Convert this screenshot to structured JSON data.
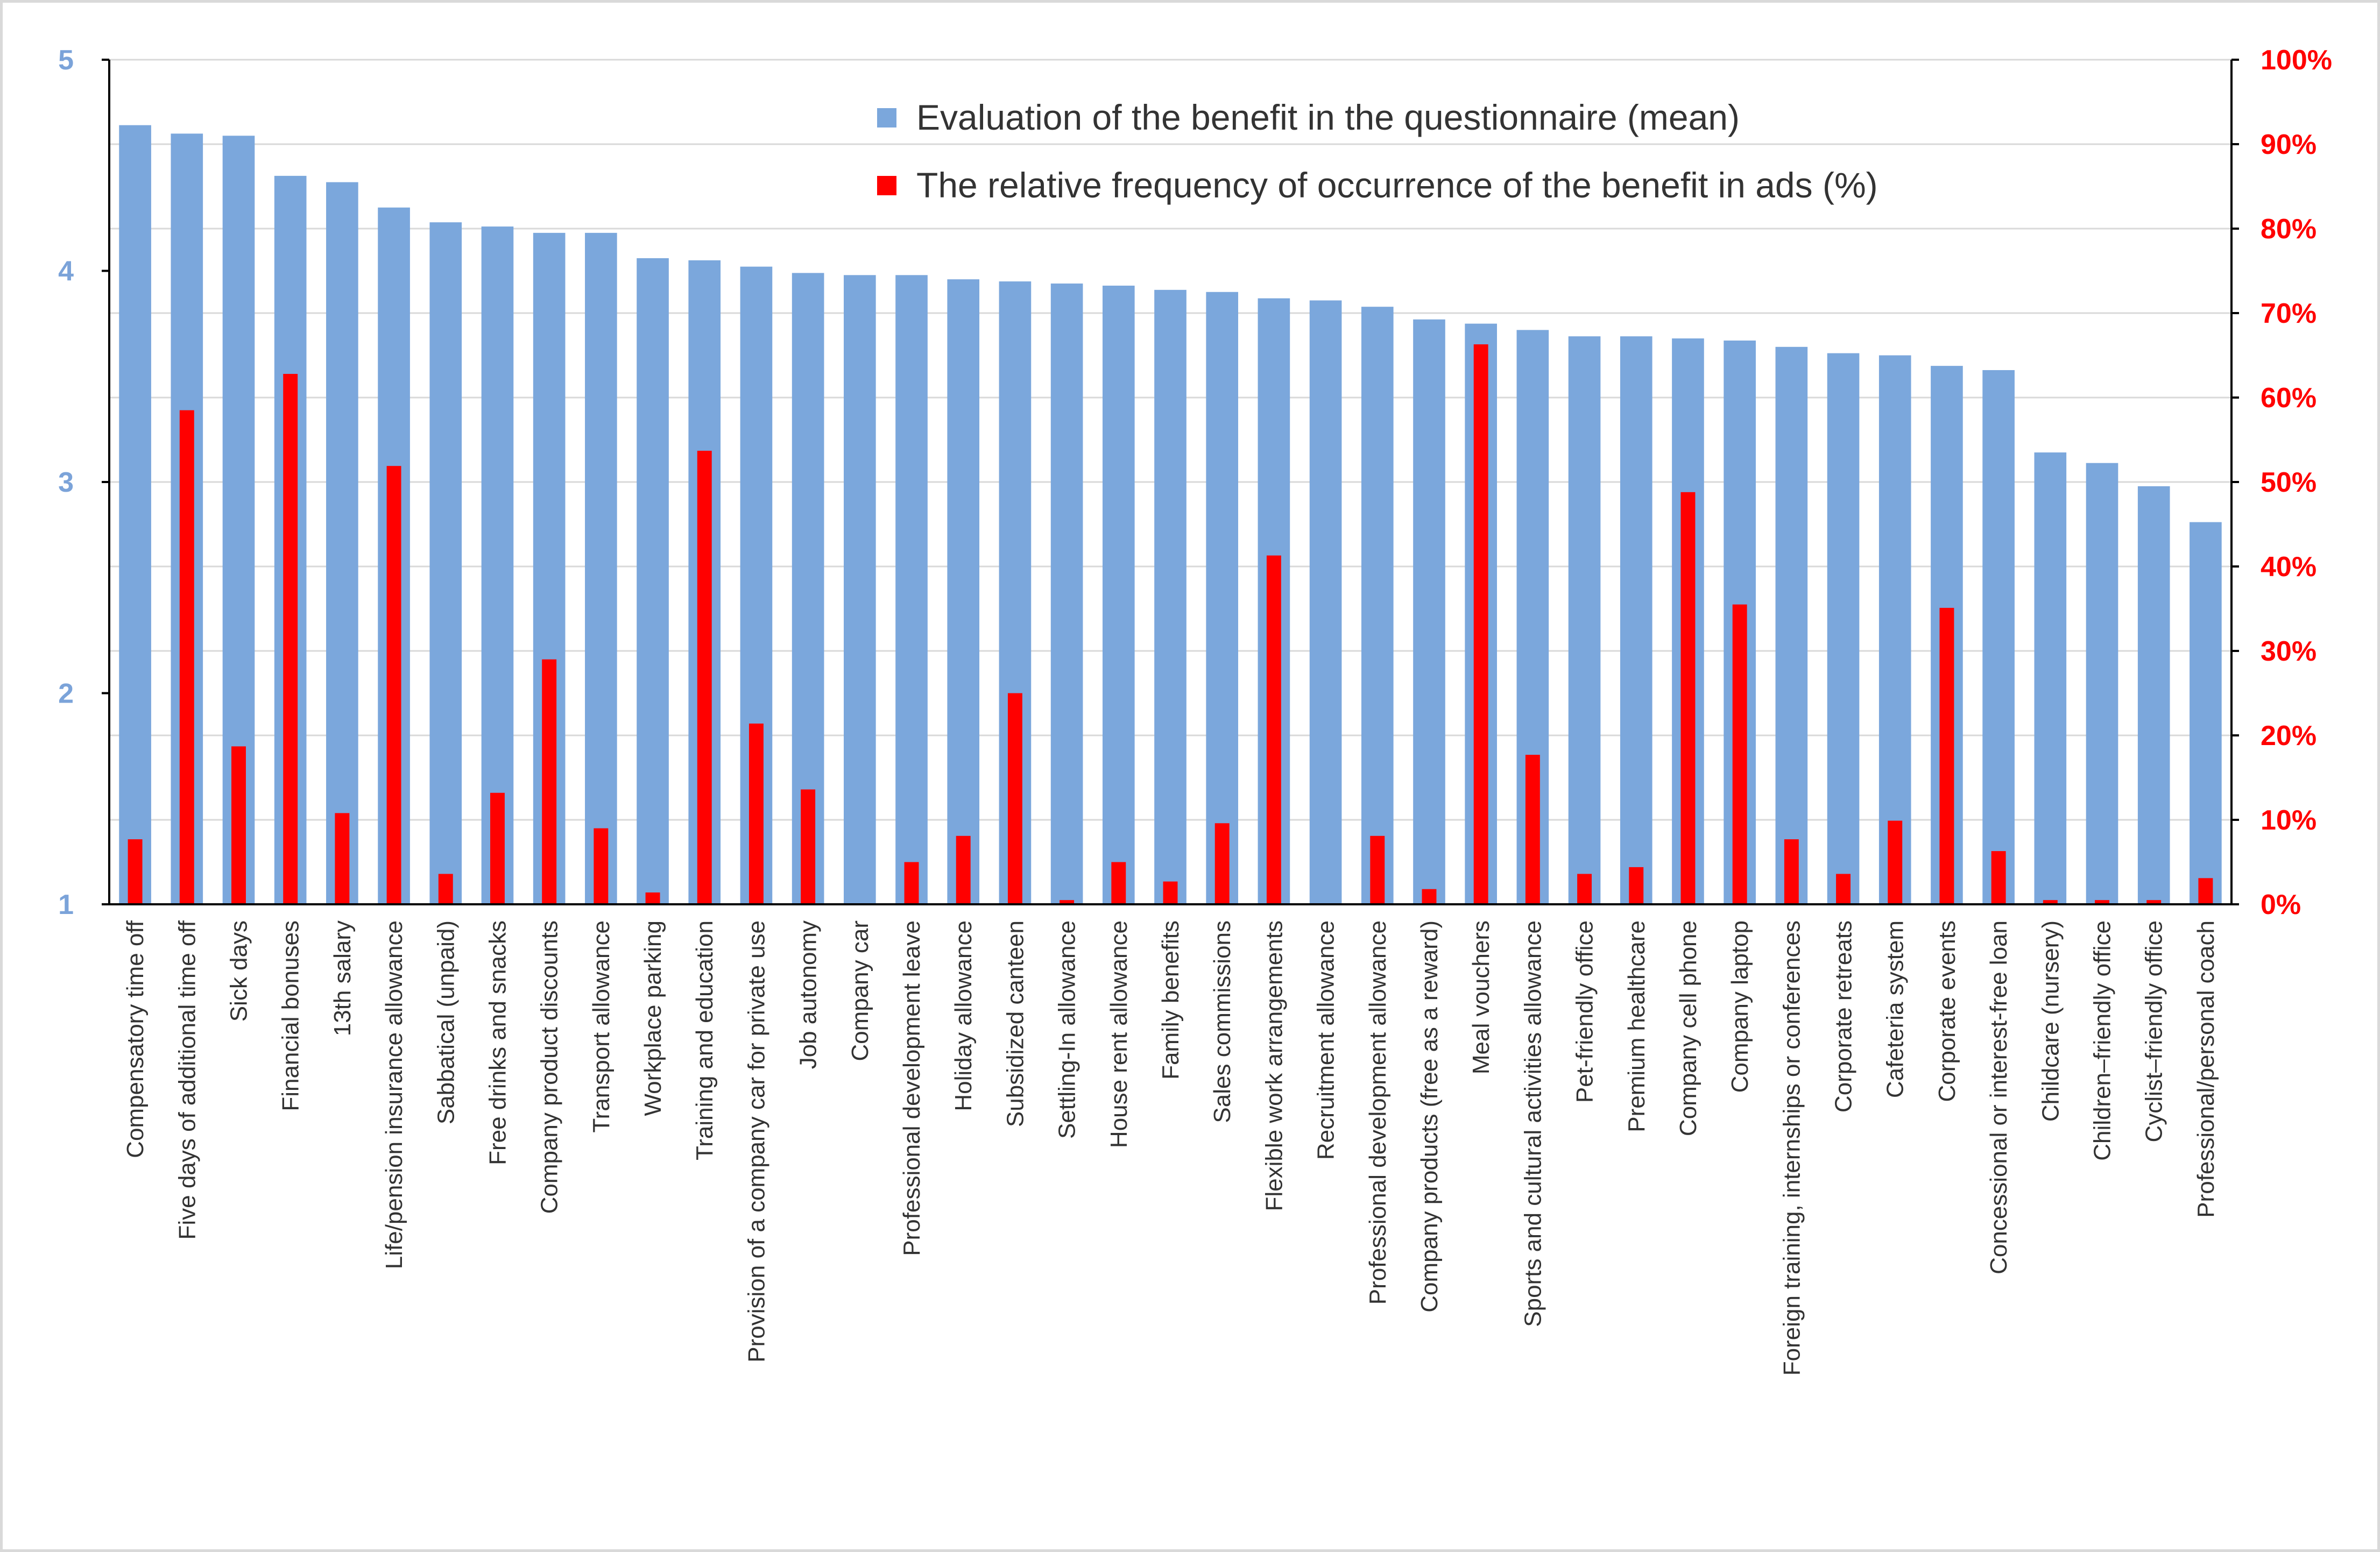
{
  "chart_data": {
    "type": "bar",
    "title": "",
    "xlabel": "",
    "ylabel": "",
    "ylim": [
      1,
      5
    ],
    "y2lim": [
      0,
      100
    ],
    "yticks": [
      "1",
      "2",
      "3",
      "4",
      "5"
    ],
    "y2ticks": [
      "0%",
      "10%",
      "20%",
      "30%",
      "40%",
      "50%",
      "60%",
      "70%",
      "80%",
      "90%",
      "100%"
    ],
    "grid": true,
    "legend_position": "top-center",
    "categories": [
      "Compensatory time off",
      "Five days of additional time off",
      "Sick days",
      "Financial bonuses",
      "13th salary",
      "Life/pension insurance allowance",
      "Sabbatical (unpaid)",
      "Free drinks and snacks",
      "Company product discounts",
      "Transport allowance",
      "Workplace parking",
      "Training and education",
      "Provision of a company car for private use",
      "Job autonomy",
      "Company car",
      "Professional development leave",
      "Holiday allowance",
      "Subsidized canteen",
      "Settling-In allowance",
      "House rent allowance",
      "Family benefits",
      "Sales commissions",
      "Flexible work arrangements",
      "Recruitment allowance",
      "Professional development allowance",
      "Company products (free as a reward)",
      "Meal vouchers",
      "Sports and cultural activities allowance",
      "Pet-friendly office",
      "Premium healthcare",
      "Company cell phone",
      "Company laptop",
      "Foreign training, internships or conferences",
      "Corporate retreats",
      "Cafeteria system",
      "Corporate events",
      "Concessional or interest-free loan",
      "Childcare (nursery)",
      "Children–friendly office",
      "Cyclist–friendly office",
      "Professional/personal coach"
    ],
    "series": [
      {
        "name": "Evaluation of the benefit in the questionnaire (mean)",
        "axis": "left",
        "color": "#7ba7dc",
        "values": [
          4.69,
          4.65,
          4.64,
          4.45,
          4.42,
          4.3,
          4.23,
          4.21,
          4.18,
          4.18,
          4.06,
          4.05,
          4.02,
          3.99,
          3.98,
          3.98,
          3.96,
          3.95,
          3.94,
          3.93,
          3.91,
          3.9,
          3.87,
          3.86,
          3.83,
          3.77,
          3.75,
          3.72,
          3.69,
          3.69,
          3.68,
          3.67,
          3.64,
          3.61,
          3.6,
          3.55,
          3.53,
          3.14,
          3.09,
          2.98,
          2.81
        ]
      },
      {
        "name": "The relative frequency of occurrence of the benefit in ads (%)",
        "axis": "right",
        "color": "#ff0000",
        "values": [
          7.7,
          58.5,
          18.7,
          62.8,
          10.8,
          51.9,
          3.6,
          13.2,
          29.0,
          9.0,
          1.4,
          53.7,
          21.4,
          13.6,
          0,
          5.0,
          8.1,
          25.0,
          0.5,
          5.0,
          2.7,
          9.6,
          41.3,
          0,
          8.1,
          1.8,
          66.3,
          17.7,
          3.6,
          4.4,
          48.8,
          35.5,
          7.7,
          3.6,
          9.9,
          35.1,
          6.3,
          0.5,
          0.5,
          0.5,
          3.1
        ]
      }
    ]
  }
}
